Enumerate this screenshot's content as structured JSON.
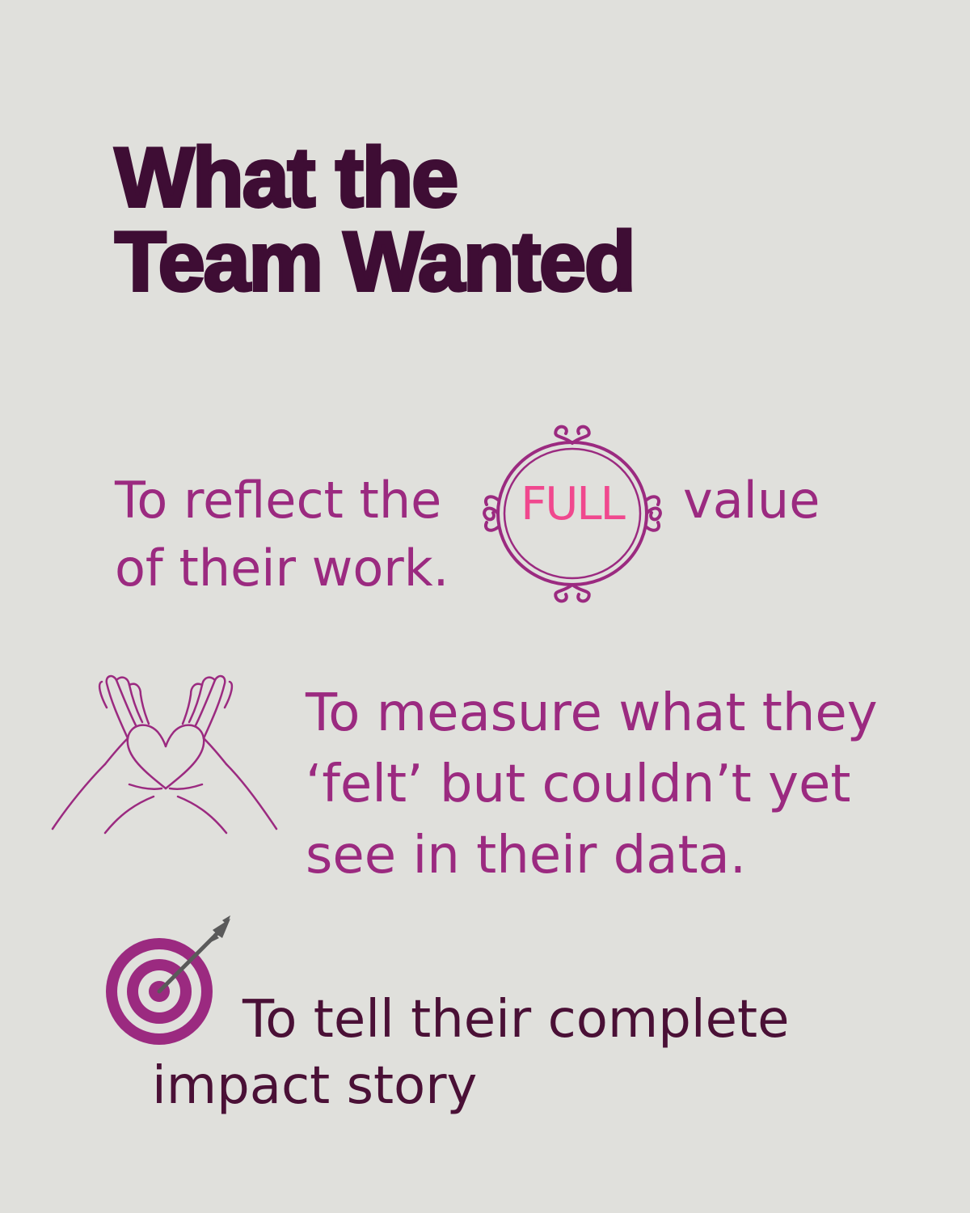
{
  "title": {
    "line1": "What the",
    "line2": "Team Wanted"
  },
  "items": [
    {
      "icon": "ornate-frame-icon",
      "line1_before": "To reflect the",
      "highlight": "FULL",
      "line1_after": "value",
      "line2": "of their work."
    },
    {
      "icon": "heart-hands-icon",
      "lines": [
        "To measure what they",
        "‘felt’ but couldn’t yet",
        "see in their data."
      ]
    },
    {
      "icon": "target-arrow-icon",
      "line1": "To tell their complete",
      "line2": "impact story"
    }
  ],
  "colors": {
    "background": "#e0e0dc",
    "title": "#3e0d34",
    "accent": "#9b2a80",
    "highlight": "#f0488e",
    "dark_text": "#4a1036",
    "arrow": "#5a5a5a"
  }
}
